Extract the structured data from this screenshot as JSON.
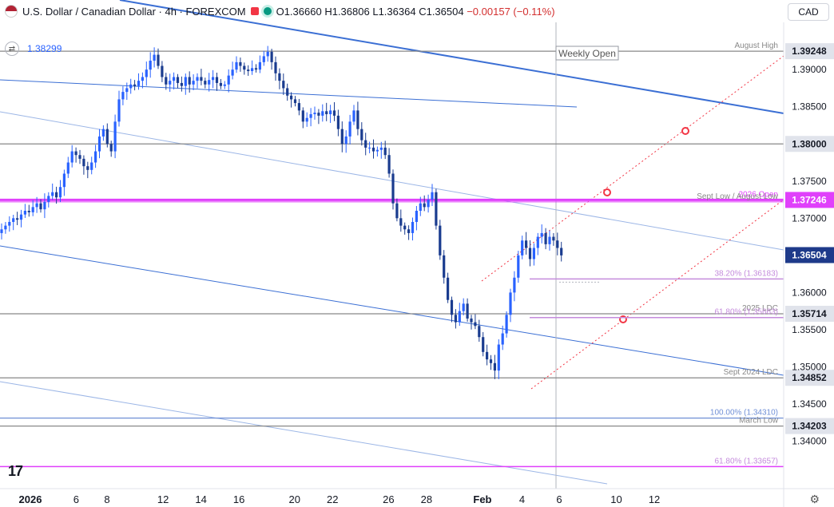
{
  "header": {
    "pair": "U.S. Dollar / Canadian Dollar · 4h · FOREXCOM",
    "open": "O1.36660",
    "high": "H1.36806",
    "low": "L1.36364",
    "close": "C1.36504",
    "change": "−0.00157 (−0.11%)",
    "secondary_price": "1.38299",
    "currency": "CAD"
  },
  "colors": {
    "bull": "#2962ff",
    "bear": "#1a3c8f",
    "resistance_line": "#3b6fd4",
    "horizontal": "#888888",
    "magenta": "#e040fb",
    "fib": "#c48bdc",
    "red_dotted": "#f23645"
  },
  "chart_data": {
    "type": "candlestick",
    "symbol": "USDCAD",
    "timeframe": "4h",
    "y_axis": {
      "min": 1.3335,
      "max": 1.3955,
      "ticks": [
        1.39,
        1.385,
        1.375,
        1.37,
        1.36,
        1.355,
        1.35,
        1.345,
        1.34
      ],
      "tick_labels": [
        "1.39000",
        "1.38500",
        "1.37500",
        "1.37000",
        "1.36000",
        "1.35500",
        "1.35000",
        "1.34500",
        "1.34000"
      ]
    },
    "x_axis": {
      "tick_labels": [
        "2026",
        "6",
        "8",
        "12",
        "14",
        "16",
        "20",
        "22",
        "26",
        "28",
        "Feb",
        "4",
        "6",
        "10",
        "12"
      ],
      "tick_index": [
        0,
        11.7,
        19.6,
        33.9,
        43.6,
        53.3,
        67.5,
        77.2,
        91.5,
        101.2,
        115.5,
        125.6,
        135.1,
        149.7,
        159.4
      ]
    },
    "levels": [
      {
        "price": 1.39248,
        "label": "August High",
        "axis_label": "1.39248",
        "style": "horizontal"
      },
      {
        "price": 1.38,
        "label": "",
        "axis_label": "1.38000",
        "style": "horizontal"
      },
      {
        "price": 1.37246,
        "label": "2026 Open",
        "axis_label": "1.37246",
        "style": "magenta"
      },
      {
        "price": 1.3722,
        "label": "Sept Low / August Low",
        "style": "magenta-thin"
      },
      {
        "price": 1.36183,
        "label": "38.20% (1.36183)",
        "style": "fib"
      },
      {
        "price": 1.35714,
        "label": "2025 LDC",
        "axis_label": "1.35714",
        "style": "horizontal"
      },
      {
        "price": 1.35663,
        "label": "61.80% (1.35663)",
        "style": "fib"
      },
      {
        "price": 1.34852,
        "label": "Sept 2024 LDC",
        "axis_label": "1.34852",
        "style": "horizontal"
      },
      {
        "price": 1.3431,
        "label": "100.00% (1.34310)",
        "style": "blue"
      },
      {
        "price": 1.34203,
        "label": "March Low",
        "axis_label": "1.34203",
        "style": "horizontal"
      },
      {
        "price": 1.33657,
        "label": "61.80% (1.33657)",
        "style": "magenta-bottom"
      }
    ],
    "current_price": {
      "price": 1.36504,
      "axis_label": "1.36504"
    },
    "annotation": {
      "text": "Weekly Open",
      "index": 115
    },
    "candles_close": [
      1.3685,
      1.369,
      1.3695,
      1.37,
      1.3698,
      1.3705,
      1.371,
      1.3708,
      1.3715,
      1.372,
      1.3712,
      1.3722,
      1.373,
      1.3735,
      1.3728,
      1.3742,
      1.376,
      1.3775,
      1.379,
      1.3785,
      1.378,
      1.377,
      1.3765,
      1.3775,
      1.379,
      1.381,
      1.382,
      1.38,
      1.379,
      1.383,
      1.386,
      1.387,
      1.3875,
      1.388,
      1.3878,
      1.3885,
      1.389,
      1.39,
      1.3912,
      1.392,
      1.3905,
      1.389,
      1.388,
      1.3885,
      1.389,
      1.3882,
      1.3878,
      1.389,
      1.388,
      1.3885,
      1.389,
      1.3885,
      1.388,
      1.3886,
      1.389,
      1.3882,
      1.3878,
      1.388,
      1.3892,
      1.39,
      1.391,
      1.3905,
      1.39,
      1.3898,
      1.3902,
      1.39,
      1.391,
      1.3918,
      1.3924,
      1.391,
      1.3895,
      1.3885,
      1.3875,
      1.3865,
      1.386,
      1.3855,
      1.3845,
      1.383,
      1.3835,
      1.384,
      1.3842,
      1.3838,
      1.3844,
      1.384,
      1.3845,
      1.3838,
      1.382,
      1.38,
      1.381,
      1.383,
      1.3845,
      1.382,
      1.3805,
      1.3795,
      1.3795,
      1.379,
      1.3792,
      1.3795,
      1.3785,
      1.376,
      1.372,
      1.37,
      1.369,
      1.3685,
      1.368,
      1.3695,
      1.371,
      1.372,
      1.3715,
      1.3725,
      1.3735,
      1.369,
      1.365,
      1.362,
      1.359,
      1.357,
      1.356,
      1.3575,
      1.3585,
      1.3565,
      1.356,
      1.3555,
      1.354,
      1.352,
      1.351,
      1.3505,
      1.3495,
      1.353,
      1.3545,
      1.357,
      1.36,
      1.362,
      1.365,
      1.367,
      1.366,
      1.3645,
      1.366,
      1.3675,
      1.368,
      1.3665,
      1.3675,
      1.367,
      1.366,
      1.365
    ]
  }
}
